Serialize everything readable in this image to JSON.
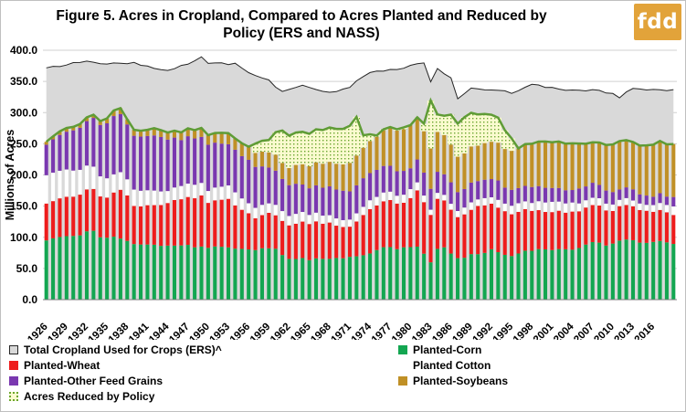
{
  "title_line1": "Figure 5. Acres in Cropland, Compared to Acres Planted and Reduced by",
  "title_line2": "Policy (ERS and NASS)",
  "logo_text": "fdd",
  "chart_data": {
    "type": "bar",
    "stacked": true,
    "title": "Figure 5. Acres in Cropland, Compared to Acres Planted and Reduced by Policy (ERS and NASS)",
    "ylabel": "Millions of Acres",
    "xlabel": "",
    "ylim": [
      0,
      400
    ],
    "yticks": [
      "0.0",
      "50.0",
      "100.0",
      "150.0",
      "200.0",
      "250.0",
      "300.0",
      "350.0",
      "400.0"
    ],
    "xticks": [
      "1926",
      "1929",
      "1932",
      "1935",
      "1938",
      "1941",
      "1944",
      "1947",
      "1950",
      "1953",
      "1956",
      "1959",
      "1962",
      "1965",
      "1968",
      "1971",
      "1974",
      "1977",
      "1980",
      "1983",
      "1986",
      "1989",
      "1992",
      "1995",
      "1998",
      "2001",
      "2004",
      "2007",
      "2010",
      "2013",
      "2016"
    ],
    "grid": true,
    "legend_position": "bottom",
    "x_start": 1926,
    "x_end": 2019,
    "cropland_anchor_years": [
      1926,
      1932,
      1935,
      1939,
      1942,
      1944,
      1945,
      1949,
      1950,
      1954,
      1957,
      1959,
      1961,
      1964,
      1967,
      1969,
      1971,
      1972,
      1974,
      1976,
      1978,
      1980,
      1982,
      1983,
      1984,
      1986,
      1987,
      1989,
      1992,
      1995,
      1998,
      2001,
      2004,
      2007,
      2010,
      2011,
      2013,
      2016,
      2019
    ],
    "cropland_anchor_values": [
      371,
      383,
      378,
      379,
      371,
      369,
      370,
      388,
      380,
      378,
      358,
      351,
      333,
      345,
      335,
      333,
      341,
      352,
      364,
      367,
      369,
      375,
      381,
      348,
      371,
      355,
      322,
      339,
      337,
      332,
      345,
      340,
      335,
      336,
      331,
      325,
      339,
      336,
      337
    ],
    "corn_anchor_years": [
      1926,
      1930,
      1933,
      1934,
      1936,
      1940,
      1945,
      1950,
      1955,
      1960,
      1962,
      1965,
      1968,
      1970,
      1972,
      1976,
      1978,
      1981,
      1983,
      1984,
      1985,
      1987,
      1990,
      1992,
      1995,
      1997,
      2000,
      2004,
      2007,
      2009,
      2012,
      2014,
      2016,
      2019
    ],
    "corn_anchor_values": [
      97,
      102,
      111,
      100,
      101,
      87,
      88,
      84,
      81,
      82,
      65,
      65,
      65,
      67,
      68,
      84,
      82,
      85,
      60,
      82,
      83,
      66,
      74,
      79,
      70,
      80,
      80,
      80,
      94,
      87,
      97,
      91,
      94,
      89
    ],
    "wheat_anchor_years": [
      1926,
      1929,
      1932,
      1935,
      1937,
      1939,
      1941,
      1944,
      1949,
      1950,
      1953,
      1957,
      1959,
      1961,
      1962,
      1966,
      1968,
      1970,
      1971,
      1974,
      1976,
      1979,
      1981,
      1983,
      1984,
      1985,
      1987,
      1990,
      1992,
      1995,
      1998,
      2001,
      2004,
      2007,
      2010,
      2013,
      2016,
      2019
    ],
    "wheat_anchor_values": [
      60,
      64,
      67,
      63,
      80,
      62,
      62,
      70,
      83,
      71,
      78,
      50,
      55,
      56,
      55,
      59,
      57,
      50,
      50,
      72,
      75,
      71,
      89,
      77,
      79,
      75,
      65,
      77,
      72,
      69,
      66,
      60,
      60,
      60,
      53,
      56,
      50,
      45
    ],
    "cotton_anchor_years": [
      1926,
      1929,
      1932,
      1935,
      1938,
      1941,
      1944,
      1947,
      1950,
      1953,
      1956,
      1959,
      1962,
      1965,
      1968,
      1971,
      1974,
      1977,
      1980,
      1983,
      1986,
      1989,
      1992,
      1995,
      1998,
      2001,
      2004,
      2007,
      2010,
      2013,
      2016,
      2019
    ],
    "cotton_anchor_values": [
      45,
      44,
      38,
      30,
      26,
      24,
      20,
      21,
      20,
      22,
      16,
      16,
      16,
      14,
      11,
      12,
      14,
      13,
      14,
      8,
      10,
      11,
      11,
      14,
      13,
      16,
      14,
      11,
      11,
      10,
      10,
      13
    ],
    "feed_anchor_years": [
      1926,
      1930,
      1933,
      1936,
      1940,
      1943,
      1946,
      1950,
      1953,
      1956,
      1959,
      1962,
      1965,
      1968,
      1971,
      1974,
      1977,
      1980,
      1983,
      1986,
      1989,
      1992,
      1995,
      1998,
      2001,
      2004,
      2007,
      2010,
      2013,
      2016,
      2019
    ],
    "feed_anchor_values": [
      50,
      64,
      77,
      95,
      85,
      88,
      75,
      76,
      68,
      70,
      56,
      48,
      44,
      47,
      45,
      45,
      42,
      35,
      35,
      33,
      31,
      31,
      26,
      24,
      22,
      22,
      23,
      19,
      18,
      14,
      15
    ],
    "soy_anchor_years": [
      1926,
      1930,
      1933,
      1936,
      1940,
      1945,
      1950,
      1955,
      1960,
      1962,
      1965,
      1970,
      1975,
      1978,
      1980,
      1983,
      1985,
      1987,
      1990,
      1995,
      2000,
      2004,
      2007,
      2010,
      2013,
      2016,
      2019
    ],
    "soy_anchor_values": [
      5,
      5,
      6,
      8,
      10,
      12,
      15,
      20,
      25,
      28,
      35,
      43,
      54,
      65,
      70,
      64,
      63,
      57,
      57,
      62,
      74,
      75,
      64,
      77,
      76,
      83,
      85
    ],
    "reduced_anchor_years": [
      1926,
      1932,
      1934,
      1937,
      1940,
      1944,
      1950,
      1954,
      1956,
      1957,
      1959,
      1961,
      1965,
      1970,
      1972,
      1973,
      1975,
      1977,
      1979,
      1980,
      1981,
      1982,
      1983,
      1984,
      1985,
      1986,
      1988,
      1990,
      1993,
      1995,
      1996
    ],
    "reduced_anchor_values": [
      0,
      0,
      0,
      0,
      0,
      0,
      0,
      0,
      0,
      15,
      20,
      52,
      52,
      57,
      62,
      20,
      2,
      1,
      3,
      0,
      0,
      12,
      77,
      28,
      31,
      48,
      58,
      50,
      40,
      20,
      0
    ],
    "series": [
      {
        "name": "Total Cropland Used for Crops (ERS)^"
      },
      {
        "name": "Planted-Corn"
      },
      {
        "name": "Planted-Wheat"
      },
      {
        "name": "Planted Cotton"
      },
      {
        "name": "Planted-Other Feed Grains"
      },
      {
        "name": "Planted-Soybeans"
      },
      {
        "name": "Acres Reduced by Policy"
      }
    ],
    "colors": {
      "cropland_fill": "#d9d9d9",
      "cropland_line": "#262626",
      "corn": "#13a651",
      "wheat": "#ee1c1c",
      "cotton": "#ffffff",
      "feed": "#7a38b0",
      "soy": "#c09026",
      "reduced_dots": "#6aa62e",
      "reduced_bg": "#fbfbcf",
      "reduced_line": "#5f9c36",
      "grid": "#d0d0d0"
    }
  }
}
